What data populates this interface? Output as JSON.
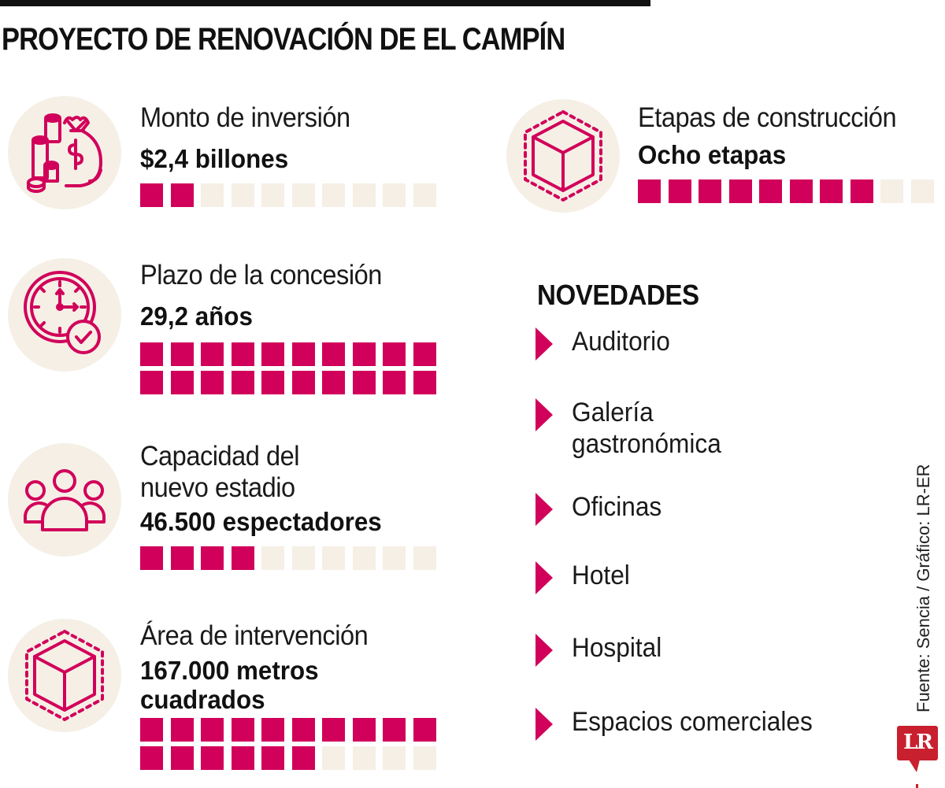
{
  "title": "PROYECTO DE RENOVACIÓN DE EL CAMPÍN",
  "colors": {
    "accent": "#d1005a",
    "empty": "#f5efe5",
    "icon_bg": "#f5efe5",
    "text": "#111111",
    "logo": "#c8202f"
  },
  "metrics": [
    {
      "label": "Monto de inversión",
      "value": "$2,4 billones",
      "icon": "money-bag-coins-icon",
      "squares_total": 10,
      "squares_filled": 2
    },
    {
      "label": "Plazo de la concesión",
      "value": "29,2 años",
      "icon": "clock-check-icon",
      "squares_total": 20,
      "squares_filled": 20
    },
    {
      "label_line1": "Capacidad del",
      "label_line2": "nuevo estadio",
      "value": "46.500 espectadores",
      "icon": "people-group-icon",
      "squares_total": 10,
      "squares_filled": 4
    },
    {
      "label": "Área de intervención",
      "value_line1": "167.000 metros",
      "value_line2": "cuadrados",
      "icon": "cube-area-icon",
      "squares_total": 20,
      "squares_filled": 16
    },
    {
      "label": "Etapas de construcción",
      "value": "Ocho etapas",
      "icon": "cube-area-icon",
      "squares_total": 10,
      "squares_filled": 8
    }
  ],
  "novedades": {
    "title": "NOVEDADES",
    "items": [
      {
        "line1": "Auditorio"
      },
      {
        "line1": "Galería",
        "line2": "gastronómica"
      },
      {
        "line1": "Oficinas"
      },
      {
        "line1": "Hotel"
      },
      {
        "line1": "Hospital"
      },
      {
        "line1": "Espacios comerciales"
      }
    ]
  },
  "source": "Fuente: Sencia / Gráfico: LR-ER",
  "logo_text": "LR",
  "chart_data": {
    "type": "table",
    "title": "PROYECTO DE RENOVACIÓN DE EL CAMPÍN",
    "rows": [
      {
        "metric": "Monto de inversión",
        "value": "$2,4 billones",
        "pictogram_filled": 2,
        "pictogram_total": 10
      },
      {
        "metric": "Plazo de la concesión",
        "value": "29,2 años",
        "pictogram_filled": 20,
        "pictogram_total": 20
      },
      {
        "metric": "Capacidad del nuevo estadio",
        "value": "46.500 espectadores",
        "pictogram_filled": 4,
        "pictogram_total": 10
      },
      {
        "metric": "Área de intervención",
        "value": "167.000 metros cuadrados",
        "pictogram_filled": 16,
        "pictogram_total": 20
      },
      {
        "metric": "Etapas de construcción",
        "value": "Ocho etapas",
        "pictogram_filled": 8,
        "pictogram_total": 10
      }
    ],
    "list_title": "NOVEDADES",
    "list": [
      "Auditorio",
      "Galería gastronómica",
      "Oficinas",
      "Hotel",
      "Hospital",
      "Espacios comerciales"
    ],
    "source": "Fuente: Sencia / Gráfico: LR-ER"
  }
}
